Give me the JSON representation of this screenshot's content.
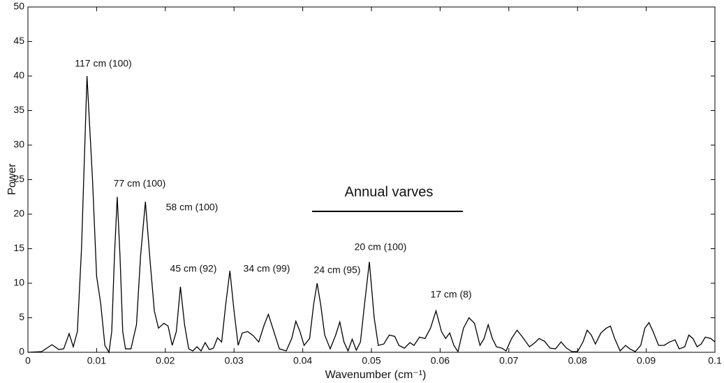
{
  "chart_data": {
    "type": "line",
    "x_label": "Wavenumber (cm⁻¹)",
    "y_label": "Power",
    "xlim": [
      0,
      0.1
    ],
    "ylim": [
      0,
      50
    ],
    "xticks": [
      0,
      0.01,
      0.02,
      0.03,
      0.04,
      0.05,
      0.06,
      0.07,
      0.08,
      0.09,
      0.1
    ],
    "yticks": [
      0,
      5,
      10,
      15,
      20,
      25,
      30,
      35,
      40,
      45,
      50
    ],
    "series": [
      {
        "color": "#000000",
        "x": [
          0,
          0.002,
          0.0035,
          0.0045,
          0.0052,
          0.006,
          0.0066,
          0.0072,
          0.0078,
          0.0086,
          0.0094,
          0.01,
          0.0106,
          0.0112,
          0.0118,
          0.0122,
          0.0126,
          0.013,
          0.0134,
          0.0138,
          0.0142,
          0.015,
          0.0158,
          0.0164,
          0.0171,
          0.0178,
          0.0184,
          0.019,
          0.0198,
          0.0204,
          0.021,
          0.0216,
          0.0222,
          0.0228,
          0.0234,
          0.024,
          0.0246,
          0.0252,
          0.0258,
          0.0264,
          0.027,
          0.0276,
          0.0282,
          0.0288,
          0.0294,
          0.03,
          0.0306,
          0.0312,
          0.032,
          0.0328,
          0.0336,
          0.0344,
          0.035,
          0.0358,
          0.0366,
          0.0376,
          0.0384,
          0.039,
          0.0396,
          0.0402,
          0.041,
          0.0416,
          0.0421,
          0.0426,
          0.0432,
          0.044,
          0.0448,
          0.0454,
          0.046,
          0.0466,
          0.0472,
          0.0478,
          0.0484,
          0.049,
          0.0497,
          0.0504,
          0.051,
          0.0518,
          0.0526,
          0.0534,
          0.054,
          0.0548,
          0.0556,
          0.0562,
          0.057,
          0.0578,
          0.0586,
          0.0594,
          0.0602,
          0.0608,
          0.0614,
          0.062,
          0.0626,
          0.0634,
          0.0642,
          0.065,
          0.0658,
          0.0664,
          0.067,
          0.0676,
          0.0682,
          0.069,
          0.0696,
          0.0704,
          0.0712,
          0.072,
          0.073,
          0.0738,
          0.0744,
          0.0752,
          0.076,
          0.0768,
          0.0776,
          0.0784,
          0.0792,
          0.08,
          0.0808,
          0.0814,
          0.082,
          0.0826,
          0.0834,
          0.0842,
          0.0848,
          0.0854,
          0.0862,
          0.087,
          0.0876,
          0.0884,
          0.0892,
          0.0898,
          0.0904,
          0.091,
          0.0918,
          0.0926,
          0.0934,
          0.0942,
          0.0948,
          0.0956,
          0.0962,
          0.0968,
          0.0974,
          0.098,
          0.0986,
          0.0994,
          0.1
        ],
        "values": [
          0,
          0.1,
          1.1,
          0.4,
          0.5,
          2.7,
          0.8,
          3,
          15,
          40,
          25,
          11,
          7,
          1,
          0,
          3,
          14,
          22.5,
          14,
          3,
          0.5,
          0.5,
          4,
          14,
          21.8,
          13,
          6,
          3.5,
          4.2,
          3.8,
          1,
          3,
          9.5,
          4,
          0.5,
          0.2,
          0.8,
          0.2,
          1.4,
          0.4,
          0.6,
          2.1,
          1.5,
          7,
          11.8,
          6,
          1,
          2.8,
          3,
          2.4,
          1.5,
          4,
          5.5,
          3,
          0.5,
          0.2,
          2,
          4.5,
          3,
          1,
          2,
          7,
          10,
          7,
          2.5,
          0.5,
          2.5,
          4.4,
          1.5,
          0.2,
          1.9,
          0.3,
          1.5,
          7,
          13.1,
          5,
          1,
          1.2,
          2.5,
          2.3,
          1,
          0.6,
          1.4,
          1,
          2.2,
          2,
          3.5,
          6,
          3,
          2,
          2.8,
          1,
          0.1,
          3.5,
          5,
          4.2,
          1,
          2,
          4,
          2,
          0.8,
          0.6,
          0.2,
          2,
          3.2,
          2.2,
          0.8,
          1.4,
          2,
          1.6,
          0.6,
          0.5,
          1.5,
          0.6,
          0.1,
          0.1,
          1.5,
          3.2,
          2.5,
          1.2,
          2.8,
          3.5,
          3.8,
          2,
          0.2,
          1,
          0.5,
          0.1,
          1,
          3.5,
          4.3,
          3,
          1,
          1,
          1.5,
          1.8,
          0.5,
          0.8,
          2.5,
          2,
          0.8,
          1.2,
          2.2,
          2,
          1.5
        ]
      }
    ],
    "annotations": [
      "117 cm (100)",
      "77 cm (100)",
      "58 cm (100)",
      "45 cm (92)",
      "34 cm (99)",
      "24 cm (95)",
      "20 cm (100)",
      "17 cm (8)",
      "Annual varves"
    ]
  }
}
